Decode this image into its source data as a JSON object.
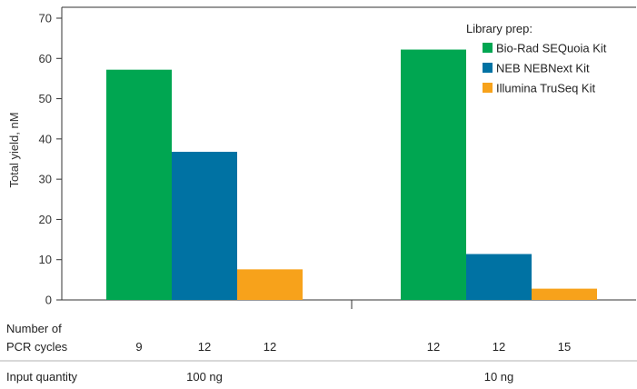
{
  "chart_data": {
    "type": "bar",
    "ylabel": "Total yield, nM",
    "ylim": [
      0,
      72
    ],
    "yticks": [
      0,
      10,
      20,
      30,
      40,
      50,
      60,
      70
    ],
    "legend": {
      "title": "Library prep:",
      "position": "top-right"
    },
    "groups": [
      {
        "input_quantity": "100 ng",
        "bars": [
          {
            "series": "Bio-Rad SEQuoia Kit",
            "value": 57.2,
            "pcr_cycles": "9"
          },
          {
            "series": "NEB NEBNext Kit",
            "value": 36.8,
            "pcr_cycles": "12"
          },
          {
            "series": "Illumina TruSeq Kit",
            "value": 7.6,
            "pcr_cycles": "12"
          }
        ]
      },
      {
        "input_quantity": "10 ng",
        "bars": [
          {
            "series": "Bio-Rad SEQuoia Kit",
            "value": 62.2,
            "pcr_cycles": "12"
          },
          {
            "series": "NEB NEBNext Kit",
            "value": 11.4,
            "pcr_cycles": "12"
          },
          {
            "series": "Illumina TruSeq Kit",
            "value": 2.8,
            "pcr_cycles": "15"
          }
        ]
      }
    ],
    "series": [
      {
        "name": "Bio-Rad SEQuoia Kit",
        "color": "#00a651"
      },
      {
        "name": "NEB NEBNext Kit",
        "color": "#0072a3"
      },
      {
        "name": "Illumina TruSeq Kit",
        "color": "#f7a21b"
      }
    ]
  },
  "table": {
    "row1_label_line1": "Number of",
    "row1_label_line2": "PCR cycles",
    "row2_label": "Input quantity"
  },
  "colors": {
    "axis": "#333333",
    "divider": "#b0b0b0"
  }
}
